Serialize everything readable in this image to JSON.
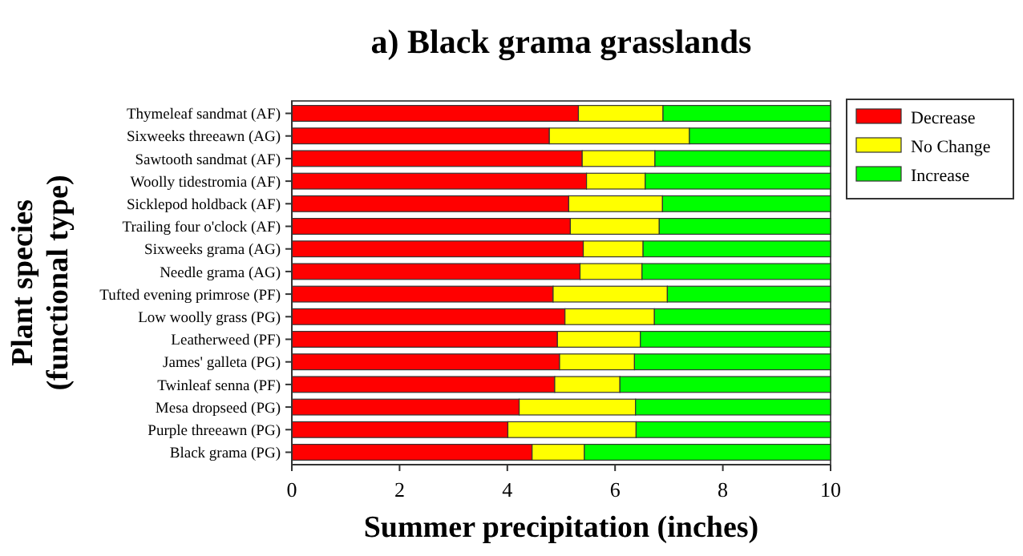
{
  "chart_data": {
    "type": "bar",
    "orientation": "horizontal",
    "stacked": true,
    "title": "a) Black grama grasslands",
    "xlabel": "Summer precipitation (inches)",
    "ylabel": "Plant species\n(functional type)",
    "categories": [
      "Thymeleaf sandmat (AF)",
      "Sixweeks threeawn (AG)",
      "Sawtooth sandmat (AF)",
      "Woolly tidestromia (AF)",
      "Sicklepod holdback (AF)",
      "Trailing four o'clock (AF)",
      "Sixweeks grama (AG)",
      "Needle grama (AG)",
      "Tufted evening primrose (PF)",
      "Low woolly grass (PG)",
      "Leatherweed (PF)",
      "James' galleta (PG)",
      "Twinleaf senna (PF)",
      "Mesa dropseed (PG)",
      "Purple threeawn (PG)",
      "Black grama (PG)"
    ],
    "series": [
      {
        "name": "Decrease",
        "color": "#ff0000",
        "values": [
          5.32,
          4.78,
          5.39,
          5.47,
          5.14,
          5.17,
          5.41,
          5.35,
          4.85,
          5.07,
          4.93,
          4.97,
          4.88,
          4.22,
          4.01,
          4.46
        ]
      },
      {
        "name": "No Change",
        "color": "#ffff00",
        "values": [
          1.57,
          2.6,
          1.35,
          1.09,
          1.74,
          1.65,
          1.11,
          1.15,
          2.12,
          1.66,
          1.54,
          1.39,
          1.21,
          2.16,
          2.38,
          0.97
        ]
      },
      {
        "name": "Increase",
        "color": "#00ff00",
        "values": [
          3.11,
          2.62,
          3.26,
          3.44,
          3.12,
          3.18,
          3.48,
          3.5,
          3.03,
          3.27,
          3.53,
          3.64,
          3.91,
          3.62,
          3.61,
          4.57
        ]
      }
    ],
    "xlim": [
      0,
      10
    ],
    "xticks": [
      0,
      2,
      4,
      6,
      8,
      10
    ],
    "legend": "top right"
  }
}
